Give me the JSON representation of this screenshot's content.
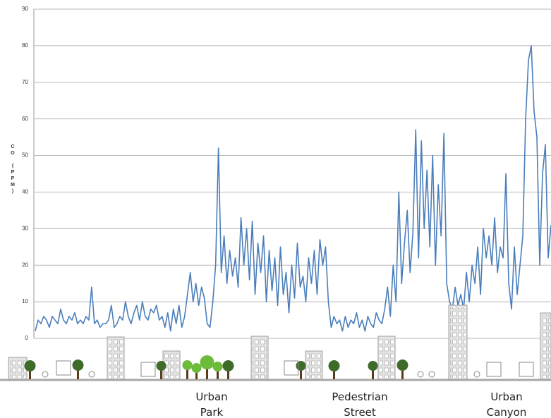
{
  "chart_data": {
    "type": "line",
    "y_label": "CO (PPM)",
    "ylim": [
      0,
      90
    ],
    "yticks": [
      0,
      10,
      20,
      30,
      40,
      50,
      60,
      70,
      80,
      90
    ],
    "grid": true,
    "color": "#4a7ebb",
    "values": [
      2,
      5,
      4,
      6,
      5,
      3,
      6,
      5,
      4,
      8,
      5,
      4,
      6,
      5,
      7,
      4,
      5,
      4,
      6,
      5,
      14,
      4,
      5,
      3,
      4,
      4,
      5,
      9,
      3,
      4,
      6,
      5,
      10,
      6,
      4,
      7,
      9,
      5,
      10,
      6,
      5,
      8,
      7,
      9,
      5,
      6,
      3,
      7,
      2,
      8,
      4,
      9,
      3,
      6,
      12,
      18,
      10,
      15,
      9,
      14,
      11,
      4,
      3,
      10,
      20,
      52,
      18,
      28,
      15,
      24,
      17,
      22,
      14,
      33,
      20,
      30,
      16,
      32,
      12,
      26,
      18,
      28,
      10,
      24,
      13,
      22,
      9,
      25,
      12,
      18,
      7,
      20,
      11,
      26,
      14,
      17,
      10,
      22,
      15,
      24,
      12,
      27,
      20,
      25,
      10,
      3,
      6,
      4,
      5,
      2,
      6,
      3,
      5,
      4,
      7,
      3,
      5,
      2,
      6,
      4,
      3,
      7,
      5,
      4,
      8,
      14,
      6,
      20,
      10,
      40,
      15,
      26,
      35,
      18,
      29,
      57,
      22,
      54,
      30,
      46,
      25,
      50,
      20,
      42,
      28,
      56,
      15,
      10,
      8,
      14,
      9,
      12,
      8,
      18,
      10,
      20,
      15,
      25,
      12,
      30,
      22,
      28,
      20,
      33,
      18,
      25,
      22,
      45,
      15,
      8,
      25,
      12,
      20,
      28,
      60,
      76,
      80,
      62,
      55,
      20,
      45,
      53,
      22,
      31
    ],
    "annotations": [
      [
        "Urban",
        "Park"
      ],
      [
        "Pedestrian",
        "Street"
      ],
      [
        "Urban",
        "Canyon"
      ]
    ]
  }
}
